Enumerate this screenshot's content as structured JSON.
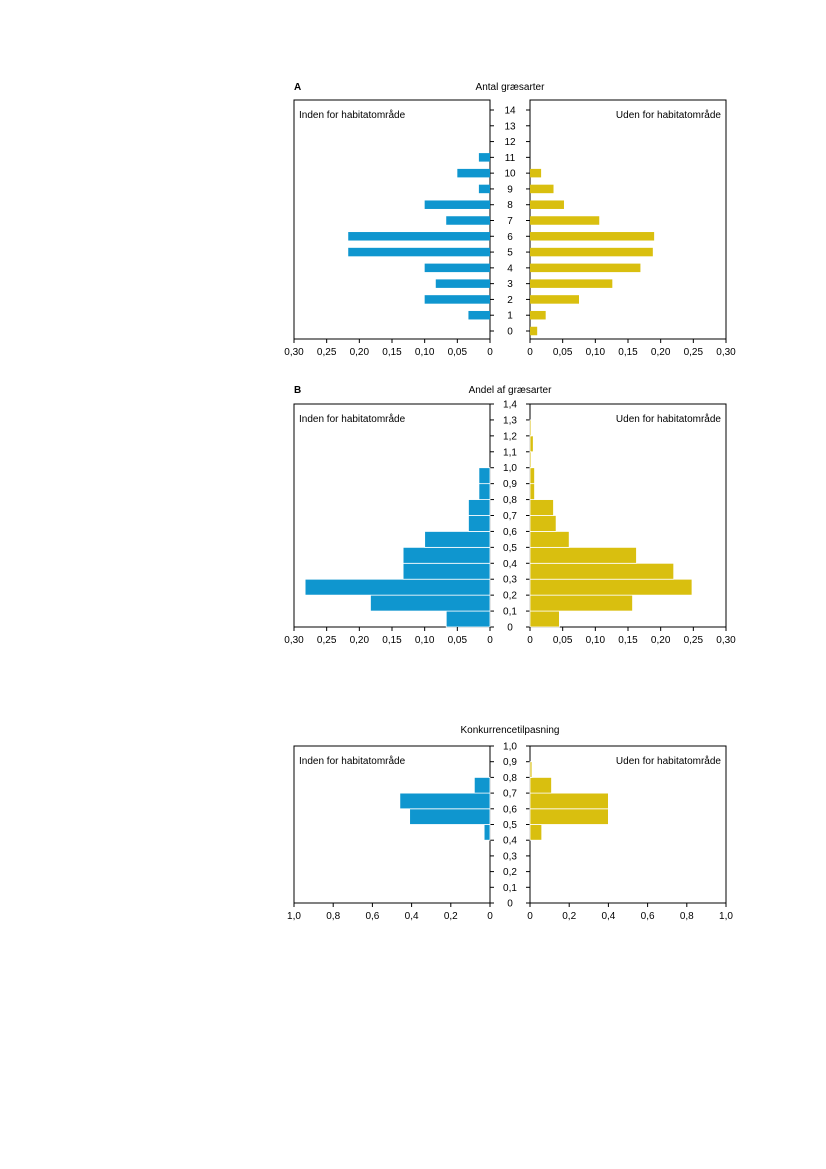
{
  "colors": {
    "inside": "#0f96cf",
    "outside": "#d9bf0f"
  },
  "chart_data": [
    {
      "type": "bar",
      "orientation": "horizontal-mirrored",
      "panel_letter": "A",
      "title": "Antal græsarter",
      "left_label": "Inden for habitatområde",
      "right_label": "Uden for habitatområde",
      "y_categories": [
        "0",
        "1",
        "2",
        "3",
        "4",
        "5",
        "6",
        "7",
        "8",
        "9",
        "10",
        "11",
        "12",
        "13",
        "14"
      ],
      "x_ticks_left": [
        "0,30",
        "0,25",
        "0,20",
        "0,15",
        "0,10",
        "0,05",
        "0"
      ],
      "x_ticks_right": [
        "0",
        "0,05",
        "0,10",
        "0,15",
        "0,20",
        "0,25",
        "0,30"
      ],
      "xlim": [
        0,
        0.3
      ],
      "series": [
        {
          "name": "Inden for habitatområde",
          "values": [
            0,
            0.033,
            0.1,
            0.083,
            0.1,
            0.217,
            0.217,
            0.067,
            0.1,
            0.017,
            0.05,
            0.017,
            0,
            0,
            0
          ]
        },
        {
          "name": "Uden for habitatområde",
          "values": [
            0.011,
            0.024,
            0.075,
            0.126,
            0.169,
            0.188,
            0.19,
            0.106,
            0.052,
            0.036,
            0.017,
            0,
            0,
            0,
            0
          ]
        }
      ]
    },
    {
      "type": "bar",
      "orientation": "horizontal-mirrored",
      "panel_letter": "B",
      "title": "Andel af græsarter",
      "left_label": "Inden for habitatområde",
      "right_label": "Uden for habitatområde",
      "y_ticks": [
        "0",
        "0,1",
        "0,2",
        "0,3",
        "0,4",
        "0,5",
        "0,6",
        "0,7",
        "0,8",
        "0,9",
        "1,0",
        "1,1",
        "1,2",
        "1,3",
        "1,4"
      ],
      "bin_width": 0.1,
      "x_ticks_left": [
        "0,30",
        "0,25",
        "0,20",
        "0,15",
        "0,10",
        "0,05",
        "0"
      ],
      "x_ticks_right": [
        "0",
        "0,05",
        "0,10",
        "0,15",
        "0,20",
        "0,25",
        "0,30"
      ],
      "xlim": [
        0,
        0.3
      ],
      "series": [
        {
          "name": "Inden for habitatområde",
          "values": [
            0.067,
            0.183,
            0.283,
            0.133,
            0.133,
            0.1,
            0.033,
            0.033,
            0.017,
            0.017,
            0,
            0,
            0,
            0
          ]
        },
        {
          "name": "Uden for habitatområde",
          "values": [
            0.045,
            0.157,
            0.248,
            0.22,
            0.163,
            0.06,
            0.04,
            0.036,
            0.007,
            0.007,
            0.002,
            0.005,
            0.002,
            0
          ]
        }
      ]
    },
    {
      "type": "bar",
      "orientation": "horizontal-mirrored",
      "panel_letter": "",
      "title": "Konkurrencetilpasning",
      "left_label": "Inden for habitatområde",
      "right_label": "Uden for habitatområde",
      "y_ticks": [
        "0",
        "0,1",
        "0,2",
        "0,3",
        "0,4",
        "0,5",
        "0,6",
        "0,7",
        "0,8",
        "0,9",
        "1,0"
      ],
      "bin_width": 0.1,
      "x_ticks_left": [
        "1,0",
        "0,8",
        "0,6",
        "0,4",
        "0,2",
        "0"
      ],
      "x_ticks_right": [
        "0",
        "0,2",
        "0,4",
        "0,6",
        "0,8",
        "1,0"
      ],
      "xlim": [
        0,
        1.0
      ],
      "series": [
        {
          "name": "Inden for habitatområde",
          "values": [
            0,
            0,
            0,
            0,
            0.03,
            0.41,
            0.46,
            0.08,
            0,
            0
          ]
        },
        {
          "name": "Uden for habitatområde",
          "values": [
            0,
            0,
            0,
            0,
            0.06,
            0.4,
            0.4,
            0.11,
            0.01,
            0
          ]
        }
      ]
    }
  ]
}
